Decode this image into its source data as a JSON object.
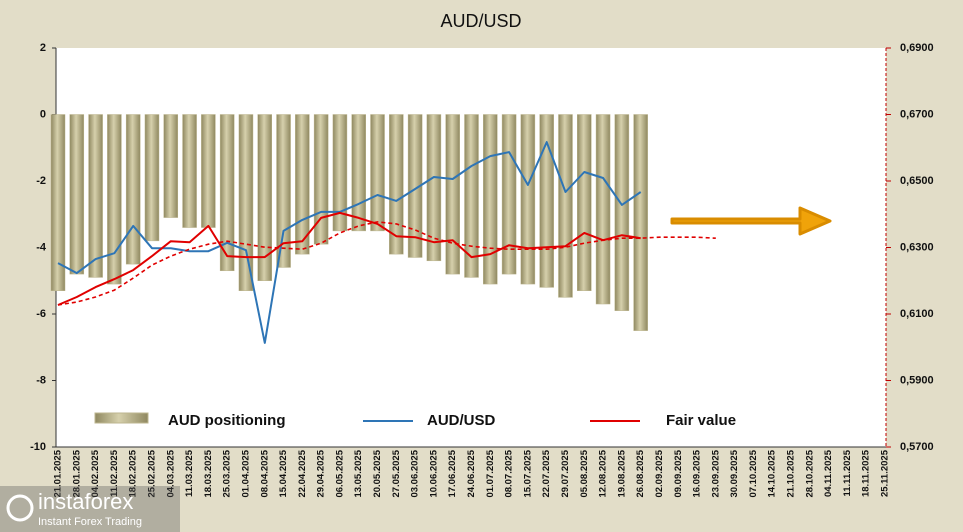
{
  "chart_data": {
    "type": "combo",
    "title": "AUD/USD",
    "categories": [
      "21.01.2025",
      "28.01.2025",
      "04.02.2025",
      "11.02.2025",
      "18.02.2025",
      "25.02.2025",
      "04.03.2025",
      "11.03.2025",
      "18.03.2025",
      "25.03.2025",
      "01.04.2025",
      "08.04.2025",
      "15.04.2025",
      "22.04.2025",
      "29.04.2025",
      "06.05.2025",
      "13.05.2025",
      "20.05.2025",
      "27.05.2025",
      "03.06.2025",
      "10.06.2025",
      "17.06.2025",
      "24.06.2025",
      "01.07.2025",
      "08.07.2025",
      "15.07.2025",
      "22.07.2025",
      "29.07.2025",
      "05.08.2025",
      "12.08.2025",
      "19.08.2025",
      "26.08.2025",
      "02.09.2025",
      "09.09.2025",
      "16.09.2025",
      "23.09.2025",
      "30.09.2025",
      "07.10.2025",
      "14.10.2025",
      "21.10.2025",
      "28.10.2025",
      "04.11.2025",
      "11.11.2025",
      "18.11.2025",
      "25.11.2025"
    ],
    "series": [
      {
        "name": "AUD positioning",
        "type": "bar",
        "color": "#bdb68f",
        "values": [
          -5.3,
          -4.8,
          -4.9,
          -5.1,
          -4.5,
          -3.8,
          -3.1,
          -3.4,
          -3.4,
          -4.7,
          -5.3,
          -5.0,
          -4.6,
          -4.2,
          -3.9,
          -3.5,
          -3.5,
          -3.5,
          -4.2,
          -4.3,
          -4.4,
          -4.8,
          -4.9,
          -5.1,
          -4.8,
          -5.1,
          -5.2,
          -5.5,
          -5.3,
          -5.7,
          -5.9,
          -6.5,
          null,
          null,
          null,
          null,
          null,
          null,
          null,
          null,
          null,
          null,
          null,
          null,
          null
        ]
      },
      {
        "name": "AUD/USD",
        "type": "line",
        "axis": "y2",
        "color": "#2e75b6",
        "values": [
          0.6253,
          0.6223,
          0.6265,
          0.6283,
          0.6365,
          0.6298,
          0.6298,
          0.6289,
          0.6289,
          0.6314,
          0.6292,
          0.6013,
          0.635,
          0.6383,
          0.6407,
          0.6407,
          0.6431,
          0.6458,
          0.644,
          0.6476,
          0.6512,
          0.6506,
          0.6545,
          0.6575,
          0.6587,
          0.6488,
          0.6617,
          0.6467,
          0.6527,
          0.6509,
          0.6428,
          0.6467,
          null,
          null,
          null,
          null,
          null,
          null,
          null,
          null,
          null,
          null,
          null,
          null,
          null
        ]
      },
      {
        "name": "Fair value",
        "type": "line",
        "axis": "y2",
        "color": "#e00000",
        "values": [
          0.6127,
          0.6151,
          0.6181,
          0.6205,
          0.6232,
          0.6274,
          0.6319,
          0.6316,
          0.6365,
          0.6274,
          0.6271,
          0.6271,
          0.6313,
          0.6319,
          0.6389,
          0.6404,
          0.6389,
          0.6371,
          0.6334,
          0.6331,
          0.6316,
          0.6322,
          0.6271,
          0.628,
          0.6307,
          0.6298,
          0.6301,
          0.6304,
          0.6344,
          0.6322,
          0.6337,
          0.6328,
          null,
          null,
          null,
          null,
          null,
          null,
          null,
          null,
          null,
          null,
          null,
          null,
          null
        ]
      },
      {
        "type": "line",
        "axis": "y2",
        "dash": true,
        "color": "#e00000",
        "values": [
          0.6127,
          0.6136,
          0.6151,
          0.6172,
          0.6208,
          0.6247,
          0.6274,
          0.6295,
          0.631,
          0.6319,
          0.631,
          0.6301,
          0.6298,
          0.6295,
          0.6313,
          0.6344,
          0.6365,
          0.6377,
          0.6371,
          0.6353,
          0.6328,
          0.6313,
          0.6304,
          0.6298,
          0.6295,
          0.6295,
          0.6295,
          0.6301,
          0.6313,
          0.6322,
          0.6328,
          0.6328,
          0.6331,
          0.6331,
          0.6331,
          0.6328,
          null,
          null,
          null,
          null,
          null,
          null,
          null,
          null,
          null
        ]
      }
    ],
    "ylim": [
      -10,
      2
    ],
    "yticks": [
      2,
      0,
      -2,
      -4,
      -6,
      -8,
      -10
    ],
    "y2lim": [
      0.57,
      0.69
    ],
    "y2ticks": [
      {
        "value": 0.69,
        "label": "0,6900"
      },
      {
        "value": 0.67,
        "label": "0,6700"
      },
      {
        "value": 0.65,
        "label": "0,6500"
      },
      {
        "value": 0.63,
        "label": "0,6300"
      },
      {
        "value": 0.61,
        "label": "0,6100"
      },
      {
        "value": 0.59,
        "label": "0,5900"
      },
      {
        "value": 0.57,
        "label": "0,5700"
      }
    ],
    "grid": false,
    "watermark": {
      "brand": "instaforex",
      "tagline": "Instant Forex Trading"
    }
  }
}
